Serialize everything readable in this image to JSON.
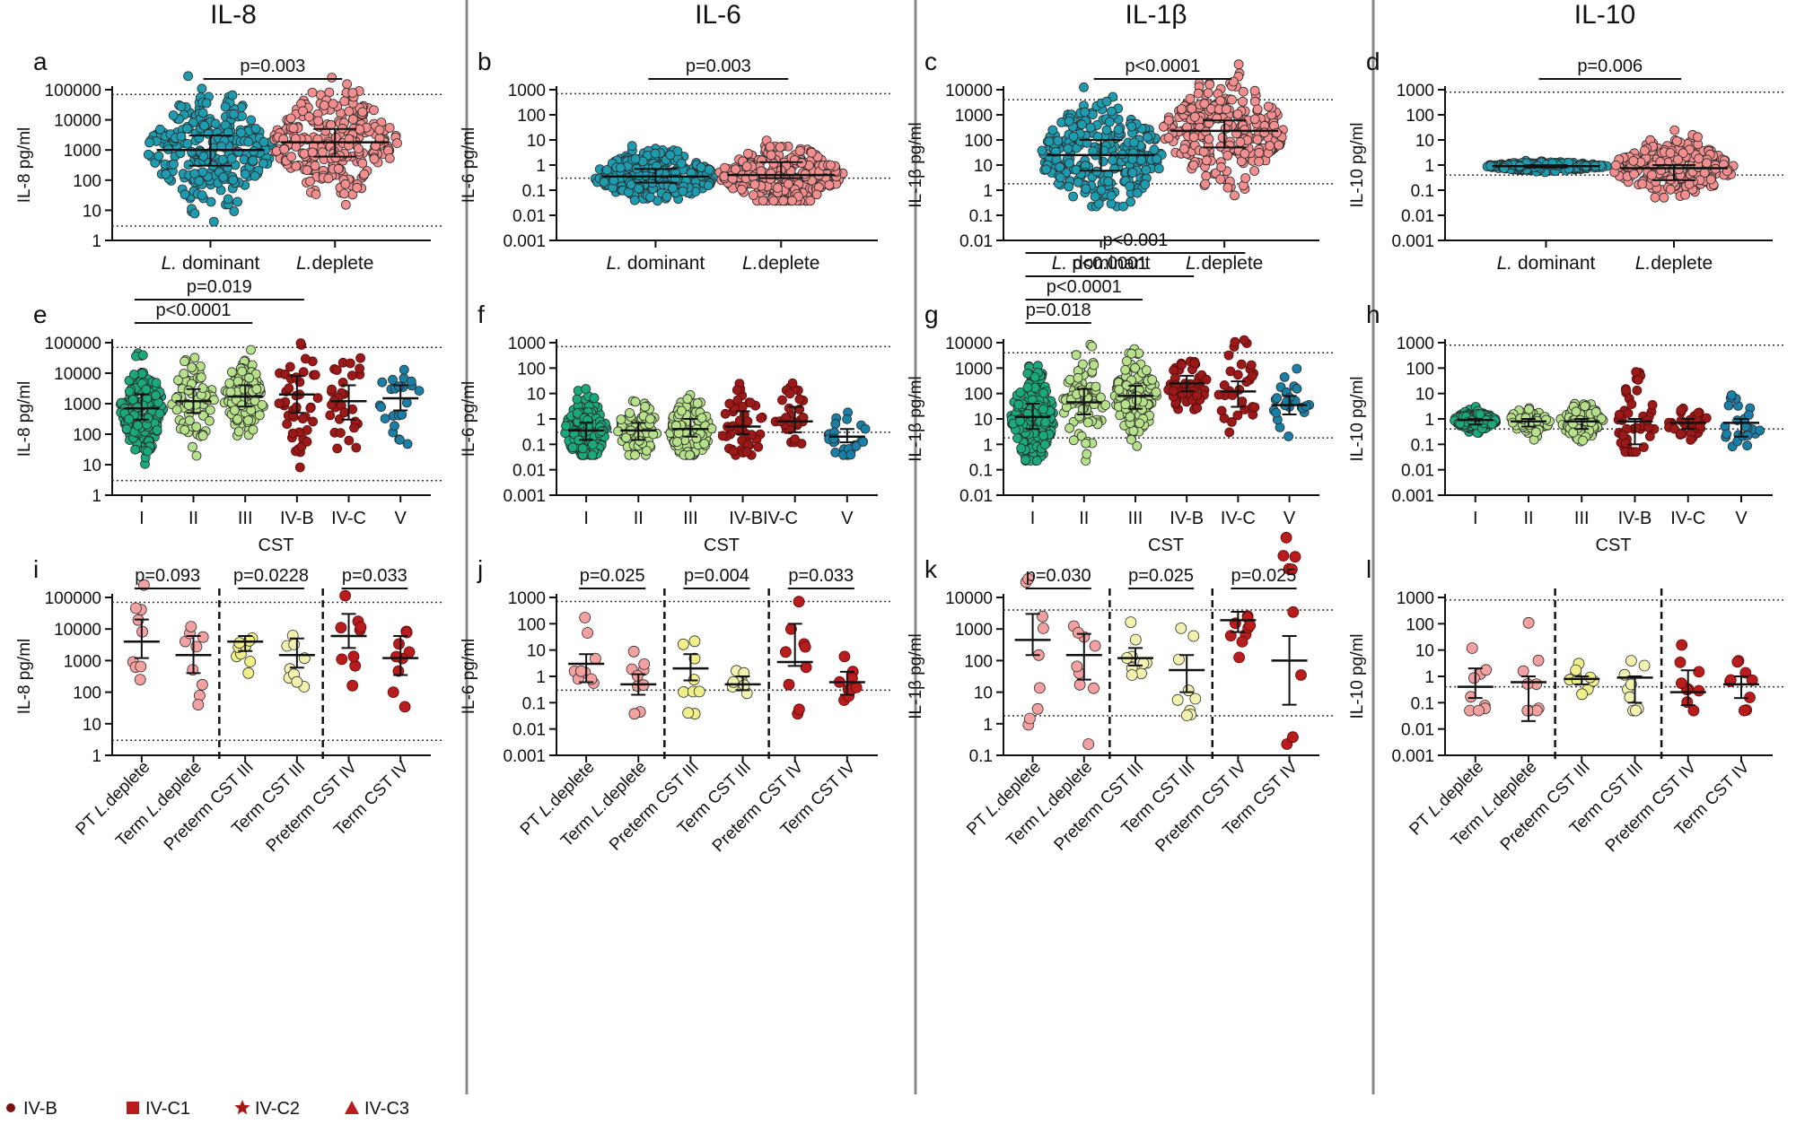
{
  "columns": [
    "IL-8",
    "IL-6",
    "IL-1β",
    "IL-10"
  ],
  "y_ticks": {
    "il8": [
      "1",
      "10",
      "100",
      "1000",
      "10000",
      "100000"
    ],
    "il6": [
      "0.001",
      "0.01",
      "0.1",
      "1",
      "10",
      "100",
      "1000"
    ],
    "il1b": [
      "0.01",
      "0.1",
      "1",
      "10",
      "100",
      "1000",
      "10000"
    ],
    "il1b_k": [
      "0.1",
      "1",
      "10",
      "100",
      "1000",
      "10000"
    ],
    "il10": [
      "0.001",
      "0.01",
      "0.1",
      "1",
      "10",
      "100",
      "1000"
    ]
  },
  "y_labels": {
    "il8": "IL-8 pg/ml",
    "il6": "IL-6 pg/ml",
    "il1b": "IL-1β pg/ml",
    "il10": "IL-10 pg/ml"
  },
  "row1_groups": [
    {
      "italic": "L.",
      "rest": " dominant"
    },
    {
      "italic": "L.",
      "rest": "deplete"
    }
  ],
  "cst_groups": [
    "I",
    "II",
    "III",
    "IV-B",
    "IV-C",
    "V"
  ],
  "cst_groups_f": [
    "I",
    "II",
    "III",
    "IV-BIV-C",
    "",
    "V"
  ],
  "cst_xlabel": "CST",
  "row3_groups": [
    {
      "parts": [
        "PT ",
        "L.",
        "deplete"
      ]
    },
    {
      "parts": [
        "Term ",
        "L.",
        "deplete"
      ]
    },
    {
      "parts": [
        "Preterm CST III",
        "",
        ""
      ]
    },
    {
      "parts": [
        "Term CST III",
        "",
        ""
      ]
    },
    {
      "parts": [
        "Preterm CST IV",
        "",
        ""
      ]
    },
    {
      "parts": [
        "Term CST IV",
        "",
        ""
      ]
    }
  ],
  "legend": [
    "IV-B",
    "IV-C1",
    "IV-C2",
    "IV-C3"
  ],
  "colors": {
    "teal": "#1f9bb0",
    "pink": "#f28e8e",
    "green": "#1aa97d",
    "lightgreen": "#b6e08a",
    "yellow": "#e4ea6a",
    "darkred": "#9a1a1a",
    "blue": "#1a7fa6",
    "pinkT": "#f2a0a0",
    "yellowT": "#f0f08a",
    "lightyellowT": "#f2f2b0",
    "red": "#b81c1c"
  },
  "chart_data": [
    {
      "panel": "a",
      "type": "scatter",
      "title": "IL-8",
      "ylabel": "IL-8 pg/ml",
      "yscale": "log",
      "ylim": [
        1,
        100000
      ],
      "categories": [
        "L. dominant",
        "L.deplete"
      ],
      "medians": [
        1000,
        1800
      ],
      "iqr": [
        [
          300,
          3000
        ],
        [
          600,
          5000
        ]
      ],
      "lod": [
        3,
        70000
      ],
      "pvalues": [
        {
          "text": "p=0.003",
          "between": [
            0,
            1
          ]
        }
      ]
    },
    {
      "panel": "b",
      "type": "scatter",
      "title": "IL-6",
      "ylabel": "IL-6 pg/ml",
      "yscale": "log",
      "ylim": [
        0.001,
        1000
      ],
      "categories": [
        "L. dominant",
        "L.deplete"
      ],
      "medians": [
        0.35,
        0.4
      ],
      "iqr": [
        [
          0.2,
          0.7
        ],
        [
          0.3,
          1.3
        ]
      ],
      "lod": [
        0.3,
        700
      ],
      "pvalues": [
        {
          "text": "p=0.003",
          "between": [
            0,
            1
          ]
        }
      ]
    },
    {
      "panel": "c",
      "type": "scatter",
      "title": "IL-1β",
      "ylabel": "IL-1β pg/ml",
      "yscale": "log",
      "ylim": [
        0.01,
        10000
      ],
      "categories": [
        "L. dominant",
        "L.deplete"
      ],
      "medians": [
        25,
        230
      ],
      "iqr": [
        [
          6,
          100
        ],
        [
          50,
          600
        ]
      ],
      "lod": [
        1.8,
        4000
      ],
      "pvalues": [
        {
          "text": "p<0.0001",
          "between": [
            0,
            1
          ]
        }
      ]
    },
    {
      "panel": "d",
      "type": "scatter",
      "title": "IL-10",
      "ylabel": "IL-10 pg/ml",
      "yscale": "log",
      "ylim": [
        0.001,
        1000
      ],
      "categories": [
        "L. dominant",
        "L.deplete"
      ],
      "medians": [
        0.9,
        0.75
      ],
      "iqr": [
        [
          0.8,
          1
        ],
        [
          0.25,
          1
        ]
      ],
      "lod": [
        0.4,
        800
      ],
      "pvalues": [
        {
          "text": "p=0.006",
          "between": [
            0,
            1
          ]
        }
      ]
    },
    {
      "panel": "e",
      "type": "scatter",
      "ylabel": "IL-8 pg/ml",
      "xlabel": "CST",
      "yscale": "log",
      "ylim": [
        1,
        100000
      ],
      "categories": [
        "I",
        "II",
        "III",
        "IV-B",
        "IV-C",
        "V"
      ],
      "medians": [
        700,
        1200,
        1700,
        2000,
        1200,
        1500
      ],
      "iqr": [
        [
          300,
          2000
        ],
        [
          500,
          3000
        ],
        [
          800,
          4000
        ],
        [
          500,
          8000
        ],
        [
          300,
          4000
        ],
        [
          600,
          4000
        ]
      ],
      "lod": [
        3,
        70000
      ],
      "pvalues": [
        {
          "text": "p<0.0001",
          "between": [
            0,
            2
          ]
        },
        {
          "text": "p=0.019",
          "between": [
            0,
            3
          ]
        }
      ]
    },
    {
      "panel": "f",
      "type": "scatter",
      "ylabel": "IL-6 pg/ml",
      "xlabel": "CST",
      "yscale": "log",
      "ylim": [
        0.001,
        1000
      ],
      "categories": [
        "I",
        "II",
        "III",
        "IV-B",
        "IV-C",
        "V"
      ],
      "medians": [
        0.35,
        0.35,
        0.4,
        0.5,
        0.8,
        0.2
      ],
      "iqr": [
        [
          0.15,
          0.7
        ],
        [
          0.15,
          0.7
        ],
        [
          0.2,
          1
        ],
        [
          0.25,
          2
        ],
        [
          0.3,
          3
        ],
        [
          0.12,
          0.4
        ]
      ],
      "lod": [
        0.3,
        700
      ],
      "pvalues": []
    },
    {
      "panel": "g",
      "type": "scatter",
      "ylabel": "IL-1β pg/ml",
      "xlabel": "CST",
      "yscale": "log",
      "ylim": [
        0.01,
        10000
      ],
      "categories": [
        "I",
        "II",
        "III",
        "IV-B",
        "IV-C",
        "V"
      ],
      "medians": [
        12,
        45,
        80,
        250,
        120,
        35
      ],
      "iqr": [
        [
          4,
          40
        ],
        [
          15,
          150
        ],
        [
          25,
          200
        ],
        [
          120,
          500
        ],
        [
          30,
          300
        ],
        [
          15,
          80
        ]
      ],
      "lod": [
        1.8,
        4000
      ],
      "pvalues": [
        {
          "text": "p=0.018",
          "between": [
            0,
            1
          ]
        },
        {
          "text": "p<0.0001",
          "between": [
            0,
            2
          ]
        },
        {
          "text": "p<0.0001",
          "between": [
            0,
            3
          ]
        },
        {
          "text": "p<0.001",
          "between": [
            0,
            4
          ]
        }
      ]
    },
    {
      "panel": "h",
      "type": "scatter",
      "ylabel": "IL-10 pg/ml",
      "xlabel": "CST",
      "yscale": "log",
      "ylim": [
        0.001,
        1000
      ],
      "categories": [
        "I",
        "II",
        "III",
        "IV-B",
        "IV-C",
        "V"
      ],
      "medians": [
        0.9,
        0.8,
        0.8,
        0.8,
        0.7,
        0.7
      ],
      "iqr": [
        [
          0.6,
          1
        ],
        [
          0.5,
          1
        ],
        [
          0.4,
          1
        ],
        [
          0.1,
          1
        ],
        [
          0.4,
          1
        ],
        [
          0.2,
          1
        ]
      ],
      "lod": [
        0.4,
        800
      ],
      "pvalues": []
    },
    {
      "panel": "i",
      "type": "scatter",
      "ylabel": "IL-8 pg/ml",
      "yscale": "log",
      "ylim": [
        1,
        100000
      ],
      "categories": [
        "PT L.deplete",
        "Term L.deplete",
        "Preterm CST III",
        "Term CST III",
        "Preterm CST IV",
        "Term CST IV"
      ],
      "medians": [
        4000,
        1500,
        4000,
        1500,
        6000,
        1200
      ],
      "iqr": [
        [
          1200,
          20000
        ],
        [
          400,
          6000
        ],
        [
          2000,
          6000
        ],
        [
          600,
          5000
        ],
        [
          2500,
          30000
        ],
        [
          350,
          6000
        ]
      ],
      "lod": [
        3,
        70000
      ],
      "pvalues": [
        {
          "text": "p=0.093",
          "between": [
            0,
            1
          ]
        },
        {
          "text": "p=0.0228",
          "between": [
            2,
            3
          ]
        },
        {
          "text": "p=0.033",
          "between": [
            4,
            5
          ]
        }
      ]
    },
    {
      "panel": "j",
      "type": "scatter",
      "ylabel": "IL-6 pg/ml",
      "yscale": "log",
      "ylim": [
        0.001,
        1000
      ],
      "categories": [
        "PT L.deplete",
        "Term L.deplete",
        "Preterm CST III",
        "Term CST III",
        "Preterm CST IV",
        "Term CST IV"
      ],
      "medians": [
        3,
        0.5,
        2,
        0.5,
        3.5,
        0.6
      ],
      "iqr": [
        [
          0.6,
          7
        ],
        [
          0.2,
          1.2
        ],
        [
          0.7,
          7
        ],
        [
          0.3,
          1
        ],
        [
          2.5,
          100
        ],
        [
          0.2,
          1.5
        ]
      ],
      "lod": [
        0.3,
        700
      ],
      "pvalues": [
        {
          "text": "p=0.025",
          "between": [
            0,
            1
          ]
        },
        {
          "text": "p=0.004",
          "between": [
            2,
            3
          ]
        },
        {
          "text": "p=0.033",
          "between": [
            4,
            5
          ]
        }
      ]
    },
    {
      "panel": "k",
      "type": "scatter",
      "ylabel": "IL-1β pg/ml",
      "yscale": "log",
      "ylim": [
        0.1,
        10000
      ],
      "categories": [
        "PT L.deplete",
        "Term L.deplete",
        "Preterm CST III",
        "Term CST III",
        "Preterm CST IV",
        "Term CST IV"
      ],
      "medians": [
        450,
        150,
        120,
        50,
        1900,
        100
      ],
      "iqr": [
        [
          150,
          3000
        ],
        [
          25,
          700
        ],
        [
          70,
          250
        ],
        [
          10,
          150
        ],
        [
          800,
          3500
        ],
        [
          4,
          600
        ]
      ],
      "lod": [
        1.8,
        4000
      ],
      "pvalues": [
        {
          "text": "p=0.030",
          "between": [
            0,
            1
          ]
        },
        {
          "text": "p=0.025",
          "between": [
            2,
            3
          ]
        },
        {
          "text": "p=0.025",
          "between": [
            4,
            5
          ]
        }
      ]
    },
    {
      "panel": "l",
      "type": "scatter",
      "ylabel": "IL-10 pg/ml",
      "yscale": "log",
      "ylim": [
        0.001,
        1000
      ],
      "categories": [
        "PT L.deplete",
        "Term L.deplete",
        "Preterm CST III",
        "Term CST III",
        "Preterm CST IV",
        "Term CST IV"
      ],
      "medians": [
        0.4,
        0.6,
        0.8,
        0.9,
        0.25,
        0.5
      ],
      "iqr": [
        [
          0.15,
          2
        ],
        [
          0.02,
          1
        ],
        [
          0.5,
          1
        ],
        [
          0.1,
          1
        ],
        [
          0.08,
          1.7
        ],
        [
          0.15,
          1
        ]
      ],
      "lod": [
        0.4,
        800
      ],
      "pvalues": []
    }
  ]
}
